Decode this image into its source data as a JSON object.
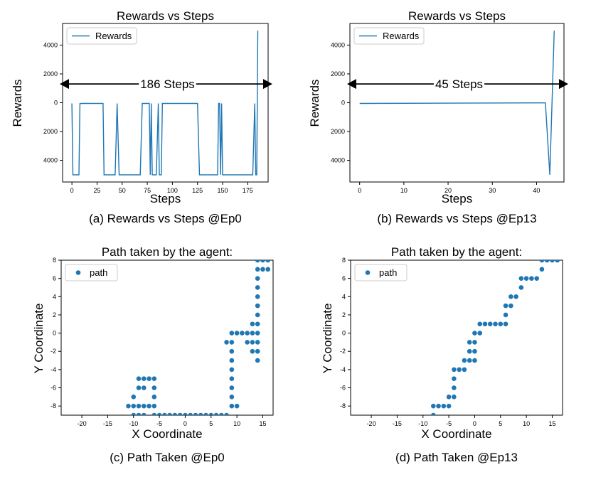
{
  "colors": {
    "series": "#1f77b4",
    "axis": "#000000",
    "arrow": "#000000"
  },
  "chart_data": [
    {
      "id": "a",
      "type": "line",
      "title": "Rewards vs Steps",
      "xlabel": "Steps",
      "ylabel": "Rewards",
      "caption": "(a) Rewards vs Steps @Ep0",
      "legend": "Rewards",
      "legend_position": "top-left",
      "xlim": [
        -9.3,
        195.3
      ],
      "ylim": [
        -5500,
        5500
      ],
      "xticks": [
        0,
        25,
        50,
        75,
        100,
        125,
        150,
        175
      ],
      "yticks": [
        4000,
        2000,
        0,
        -2000,
        -4000
      ],
      "ytick_labels": [
        "4000",
        "2000",
        "0",
        "2000",
        "4000"
      ],
      "annotation": "186 Steps",
      "series": [
        {
          "name": "Rewards",
          "x": [
            0,
            1,
            4,
            7,
            8,
            11,
            13,
            16,
            19,
            22,
            25,
            28,
            31,
            32,
            34,
            37,
            40,
            43,
            45,
            47,
            50,
            53,
            56,
            59,
            62,
            65,
            68,
            70,
            71,
            72,
            74,
            77,
            78,
            79,
            80,
            82,
            84,
            86,
            87,
            88,
            89,
            90,
            92,
            95,
            98,
            101,
            104,
            107,
            110,
            113,
            116,
            119,
            122,
            125,
            127,
            130,
            133,
            136,
            139,
            142,
            145,
            146,
            147,
            148,
            149,
            150,
            152,
            155,
            158,
            161,
            164,
            167,
            170,
            173,
            176,
            178,
            180,
            182,
            183,
            184,
            185
          ],
          "y": [
            -50,
            -5000,
            -5000,
            -5000,
            -60,
            -50,
            -50,
            -50,
            -50,
            -50,
            -50,
            -50,
            -50,
            -5000,
            -5000,
            -5000,
            -5000,
            -5000,
            -50,
            -5000,
            -5000,
            -5000,
            -5000,
            -5000,
            -5000,
            -5000,
            -5000,
            -50,
            -50,
            -50,
            -50,
            -50,
            -5000,
            -50,
            -5000,
            -5000,
            -5000,
            -50,
            -5000,
            -5000,
            -5000,
            -50,
            -50,
            -50,
            -50,
            -50,
            -50,
            -50,
            -50,
            -50,
            -50,
            -50,
            -50,
            -50,
            -5000,
            -5000,
            -5000,
            -5000,
            -5000,
            -5000,
            -5000,
            -50,
            -50,
            -5000,
            -50,
            -5000,
            -5000,
            -5000,
            -5000,
            -5000,
            -5000,
            -5000,
            -5000,
            -5000,
            -5000,
            -5000,
            -5000,
            -50,
            -5000,
            -5000,
            5000
          ]
        }
      ]
    },
    {
      "id": "b",
      "type": "line",
      "title": "Rewards vs Steps",
      "xlabel": "Steps",
      "ylabel": "Rewards",
      "caption": "(b) Rewards vs Steps @Ep13",
      "legend": "Rewards",
      "legend_position": "top-left",
      "xlim": [
        -2.2,
        46.2
      ],
      "ylim": [
        -5500,
        5500
      ],
      "xticks": [
        0,
        10,
        20,
        30,
        40
      ],
      "yticks": [
        4000,
        2000,
        0,
        -2000,
        -4000
      ],
      "ytick_labels": [
        "4000",
        "2000",
        "0",
        "2000",
        "4000"
      ],
      "annotation": "45 Steps",
      "series": [
        {
          "name": "Rewards",
          "x": [
            0,
            42,
            43,
            44
          ],
          "y": [
            -50,
            -10,
            -5000,
            5000
          ]
        }
      ]
    },
    {
      "id": "c",
      "type": "scatter",
      "title": "Path taken by the agent:",
      "xlabel": "X Coordinate",
      "ylabel": "Y Coordinate",
      "caption": "(c) Path Taken @Ep0",
      "legend": "path",
      "legend_position": "top-left",
      "xlim": [
        -24,
        17
      ],
      "ylim": [
        -9,
        8
      ],
      "xticks": [
        -20,
        -15,
        -10,
        -5,
        0,
        5,
        10,
        15
      ],
      "yticks": [
        8,
        6,
        4,
        2,
        0,
        -2,
        -4,
        -6,
        -8
      ],
      "series": [
        {
          "name": "path",
          "points": [
            [
              -11,
              -8
            ],
            [
              -10,
              -8
            ],
            [
              -9,
              -8
            ],
            [
              -8,
              -8
            ],
            [
              -7,
              -8
            ],
            [
              -6,
              -8
            ],
            [
              -10,
              -9
            ],
            [
              -9,
              -9
            ],
            [
              -8,
              -9
            ],
            [
              -6,
              -9
            ],
            [
              -10,
              -7
            ],
            [
              -9,
              -6
            ],
            [
              -8,
              -6
            ],
            [
              -9,
              -5
            ],
            [
              -8,
              -5
            ],
            [
              -7,
              -5
            ],
            [
              -6,
              -5
            ],
            [
              -6,
              -6
            ],
            [
              -6,
              -7
            ],
            [
              -5,
              -9
            ],
            [
              -4,
              -9
            ],
            [
              -3,
              -9
            ],
            [
              -2,
              -9
            ],
            [
              -1,
              -9
            ],
            [
              0,
              -9
            ],
            [
              1,
              -9
            ],
            [
              2,
              -9
            ],
            [
              3,
              -9
            ],
            [
              4,
              -9
            ],
            [
              5,
              -9
            ],
            [
              6,
              -9
            ],
            [
              7,
              -9
            ],
            [
              8,
              -9
            ],
            [
              9,
              -8
            ],
            [
              10,
              -8
            ],
            [
              9,
              -7
            ],
            [
              9,
              -6
            ],
            [
              9,
              -5
            ],
            [
              9,
              -4
            ],
            [
              9,
              -3
            ],
            [
              9,
              -2
            ],
            [
              8,
              -1
            ],
            [
              9,
              -1
            ],
            [
              9,
              0
            ],
            [
              10,
              0
            ],
            [
              11,
              0
            ],
            [
              12,
              0
            ],
            [
              13,
              0
            ],
            [
              13,
              1
            ],
            [
              12,
              -1
            ],
            [
              13,
              -1
            ],
            [
              14,
              -1
            ],
            [
              13,
              -2
            ],
            [
              14,
              -2
            ],
            [
              14,
              -3
            ],
            [
              14,
              0
            ],
            [
              14,
              1
            ],
            [
              14,
              2
            ],
            [
              14,
              3
            ],
            [
              14,
              4
            ],
            [
              14,
              5
            ],
            [
              14,
              6
            ],
            [
              14,
              7
            ],
            [
              14,
              8
            ],
            [
              15,
              8
            ],
            [
              16,
              8
            ],
            [
              15,
              7
            ],
            [
              16,
              7
            ]
          ]
        }
      ]
    },
    {
      "id": "d",
      "type": "scatter",
      "title": "Path taken by the agent:",
      "xlabel": "X Coordinate",
      "ylabel": "Y Coordinate",
      "caption": "(d) Path Taken @Ep13",
      "legend": "path",
      "legend_position": "top-left",
      "xlim": [
        -24,
        17
      ],
      "ylim": [
        -9,
        8
      ],
      "xticks": [
        -20,
        -15,
        -10,
        -5,
        0,
        5,
        10,
        15
      ],
      "yticks": [
        8,
        6,
        4,
        2,
        0,
        -2,
        -4,
        -6,
        -8
      ],
      "series": [
        {
          "name": "path",
          "points": [
            [
              -8,
              -9
            ],
            [
              -8,
              -8
            ],
            [
              -7,
              -8
            ],
            [
              -6,
              -8
            ],
            [
              -5,
              -8
            ],
            [
              -5,
              -7
            ],
            [
              -4,
              -7
            ],
            [
              -4,
              -6
            ],
            [
              -4,
              -5
            ],
            [
              -4,
              -4
            ],
            [
              -3,
              -4
            ],
            [
              -2,
              -4
            ],
            [
              -2,
              -3
            ],
            [
              -1,
              -3
            ],
            [
              0,
              -3
            ],
            [
              -1,
              -2
            ],
            [
              0,
              -2
            ],
            [
              -1,
              -1
            ],
            [
              0,
              -1
            ],
            [
              0,
              0
            ],
            [
              1,
              0
            ],
            [
              1,
              1
            ],
            [
              2,
              1
            ],
            [
              3,
              1
            ],
            [
              4,
              1
            ],
            [
              5,
              1
            ],
            [
              6,
              1
            ],
            [
              6,
              2
            ],
            [
              6,
              3
            ],
            [
              7,
              3
            ],
            [
              7,
              4
            ],
            [
              8,
              4
            ],
            [
              9,
              5
            ],
            [
              9,
              6
            ],
            [
              10,
              6
            ],
            [
              11,
              6
            ],
            [
              12,
              6
            ],
            [
              13,
              7
            ],
            [
              13,
              8
            ],
            [
              14,
              8
            ],
            [
              15,
              8
            ],
            [
              16,
              8
            ]
          ]
        }
      ]
    }
  ]
}
